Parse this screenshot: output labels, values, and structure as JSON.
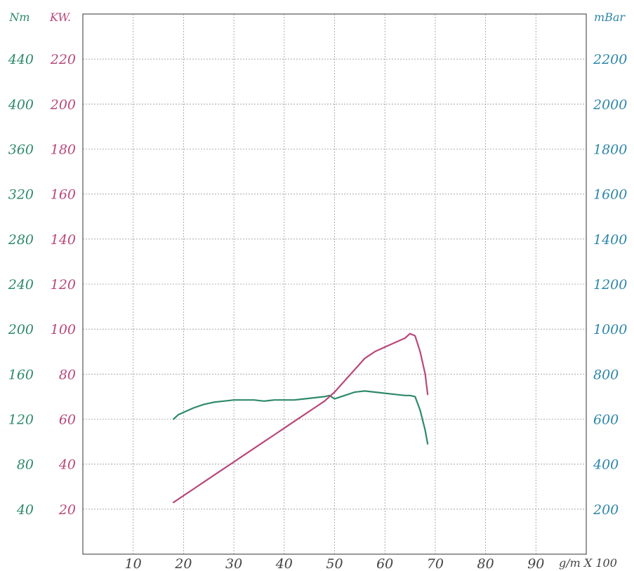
{
  "chart_data": {
    "type": "line",
    "colors": {
      "torque": "#2e8a6a",
      "power": "#b8487a",
      "pressure": "#2e86a8",
      "grid": "#9a9a9a",
      "frame": "#555555"
    },
    "grid": true,
    "x_axis": {
      "label": "g/m X 100",
      "range": [
        0,
        100
      ],
      "ticks": [
        10,
        20,
        30,
        40,
        50,
        60,
        70,
        80,
        90
      ]
    },
    "y_axes": {
      "torque": {
        "unit": "Nm",
        "range": [
          0,
          480
        ],
        "ticks": [
          40,
          80,
          120,
          160,
          200,
          240,
          280,
          320,
          360,
          400,
          440
        ]
      },
      "power": {
        "unit": "KW.",
        "range": [
          0,
          240
        ],
        "ticks": [
          20,
          40,
          60,
          80,
          100,
          120,
          140,
          160,
          180,
          200,
          220
        ]
      },
      "pressure": {
        "unit": "mBar",
        "range": [
          0,
          2400
        ],
        "ticks": [
          200,
          400,
          600,
          800,
          1000,
          1200,
          1400,
          1600,
          1800,
          2000,
          2200
        ]
      }
    },
    "series": [
      {
        "axis": "torque",
        "color": "#2e8a6a",
        "x": [
          18,
          19,
          20,
          22,
          24,
          26,
          28,
          30,
          32,
          34,
          36,
          38,
          40,
          42,
          44,
          46,
          48,
          49,
          50,
          52,
          54,
          56,
          58,
          60,
          62,
          64,
          65,
          66,
          67,
          68,
          68.5
        ],
        "y": [
          120,
          124,
          126,
          130,
          133,
          135,
          136,
          137,
          137,
          137,
          136,
          137,
          137,
          137,
          138,
          139,
          140,
          141,
          138,
          141,
          144,
          145,
          144,
          143,
          142,
          141,
          141,
          140,
          128,
          110,
          98
        ]
      },
      {
        "axis": "power",
        "color": "#b8487a",
        "x": [
          18,
          20,
          22,
          24,
          26,
          28,
          30,
          32,
          34,
          36,
          38,
          40,
          42,
          44,
          46,
          48,
          50,
          52,
          54,
          56,
          58,
          60,
          62,
          64,
          65,
          66,
          67,
          68,
          68.5
        ],
        "y": [
          23,
          26,
          29,
          32,
          35,
          38,
          41,
          44,
          47,
          50,
          53,
          56,
          59,
          62,
          65,
          68,
          72,
          77,
          82,
          87,
          90,
          92,
          94,
          96,
          98,
          97,
          90,
          80,
          71
        ]
      }
    ]
  }
}
